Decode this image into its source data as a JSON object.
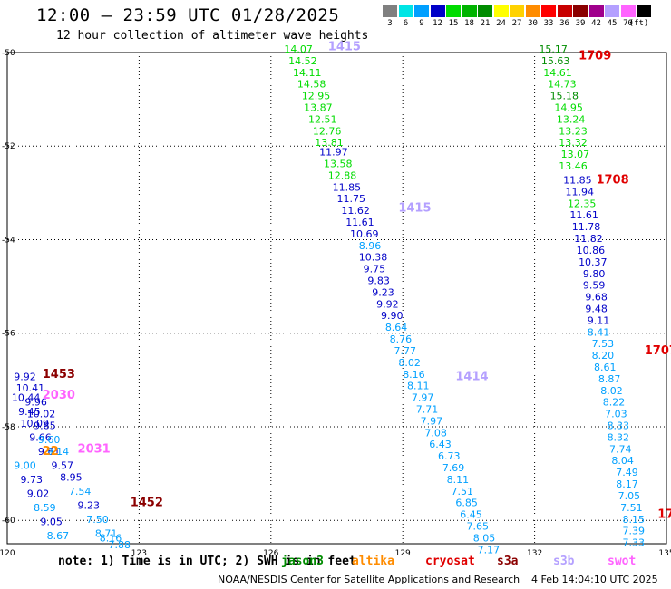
{
  "header": {
    "title": "12:00 — 23:59 UTC 01/28/2025",
    "subtitle": "12 hour collection of altimeter wave heights",
    "units": "(ft)"
  },
  "colorbar": [
    {
      "color": "#808080",
      "label": "3"
    },
    {
      "color": "#00e5e5",
      "label": "6"
    },
    {
      "color": "#00a0ff",
      "label": "9"
    },
    {
      "color": "#0000c8",
      "label": "12"
    },
    {
      "color": "#00dc00",
      "label": "15"
    },
    {
      "color": "#00b400",
      "label": "18"
    },
    {
      "color": "#008c00",
      "label": "21"
    },
    {
      "color": "#ffff00",
      "label": "24"
    },
    {
      "color": "#ffd200",
      "label": "27"
    },
    {
      "color": "#ff8c00",
      "label": "30"
    },
    {
      "color": "#ff0000",
      "label": "33"
    },
    {
      "color": "#c80000",
      "label": "36"
    },
    {
      "color": "#8b0000",
      "label": "39"
    },
    {
      "color": "#a0008c",
      "label": "42"
    },
    {
      "color": "#b4a0ff",
      "label": "45"
    },
    {
      "color": "#ff64ff",
      "label": "70"
    },
    {
      "color": "#000000",
      "label": ""
    }
  ],
  "map": {
    "lon_ticks": [
      "120",
      "123",
      "126",
      "129",
      "132",
      "135"
    ],
    "lat_ticks": [
      "-50",
      "-52",
      "-54",
      "-56",
      "-58",
      "-60"
    ],
    "track_labels": [
      {
        "text": "1415",
        "lon": 127.3,
        "lat": -49.95,
        "color": "#b4a0ff"
      },
      {
        "text": "1415",
        "lon": 128.9,
        "lat": -53.4,
        "color": "#b4a0ff"
      },
      {
        "text": "1414",
        "lon": 130.2,
        "lat": -57.0,
        "color": "#b4a0ff"
      },
      {
        "text": "1709",
        "lon": 133.0,
        "lat": -50.15,
        "color": "#e00000"
      },
      {
        "text": "1708",
        "lon": 133.4,
        "lat": -52.8,
        "color": "#e00000"
      },
      {
        "text": "1707",
        "lon": 134.5,
        "lat": -56.45,
        "color": "#e00000"
      },
      {
        "text": "17",
        "lon": 134.8,
        "lat": -59.95,
        "color": "#e00000"
      },
      {
        "text": "1453",
        "lon": 120.8,
        "lat": -56.95,
        "color": "#8b0000"
      },
      {
        "text": "1452",
        "lon": 122.8,
        "lat": -59.7,
        "color": "#8b0000"
      },
      {
        "text": "2030",
        "lon": 120.8,
        "lat": -57.4,
        "color": "#ff64ff"
      },
      {
        "text": "2031",
        "lon": 121.6,
        "lat": -58.55,
        "color": "#ff64ff"
      },
      {
        "text": "22",
        "lon": 120.8,
        "lat": -58.6,
        "color": "#ff8c00"
      }
    ],
    "observations": [
      {
        "text": "14.07",
        "lon": 126.3,
        "lat": -50.0,
        "color": "#00dc00"
      },
      {
        "text": "14.52",
        "lon": 126.4,
        "lat": -50.25,
        "color": "#00dc00"
      },
      {
        "text": "14.11",
        "lon": 126.5,
        "lat": -50.5,
        "color": "#00dc00"
      },
      {
        "text": "14.58",
        "lon": 126.6,
        "lat": -50.75,
        "color": "#00dc00"
      },
      {
        "text": "12.95",
        "lon": 126.7,
        "lat": -51.0,
        "color": "#00dc00"
      },
      {
        "text": "13.87",
        "lon": 126.75,
        "lat": -51.25,
        "color": "#00dc00"
      },
      {
        "text": "12.51",
        "lon": 126.85,
        "lat": -51.5,
        "color": "#00dc00"
      },
      {
        "text": "12.76",
        "lon": 126.95,
        "lat": -51.75,
        "color": "#00dc00"
      },
      {
        "text": "13.81",
        "lon": 127.0,
        "lat": -52.0,
        "color": "#00dc00"
      },
      {
        "text": "11.97",
        "lon": 127.1,
        "lat": -52.2,
        "color": "#0000c8"
      },
      {
        "text": "13.58",
        "lon": 127.2,
        "lat": -52.45,
        "color": "#00dc00"
      },
      {
        "text": "12.88",
        "lon": 127.3,
        "lat": -52.7,
        "color": "#00dc00"
      },
      {
        "text": "11.85",
        "lon": 127.4,
        "lat": -52.95,
        "color": "#0000c8"
      },
      {
        "text": "11.75",
        "lon": 127.5,
        "lat": -53.2,
        "color": "#0000c8"
      },
      {
        "text": "11.62",
        "lon": 127.6,
        "lat": -53.45,
        "color": "#0000c8"
      },
      {
        "text": "11.61",
        "lon": 127.7,
        "lat": -53.7,
        "color": "#0000c8"
      },
      {
        "text": "10.69",
        "lon": 127.8,
        "lat": -53.95,
        "color": "#0000c8"
      },
      {
        "text": "8.96",
        "lon": 128.0,
        "lat": -54.2,
        "color": "#00a0ff"
      },
      {
        "text": "10.38",
        "lon": 128.0,
        "lat": -54.45,
        "color": "#0000c8"
      },
      {
        "text": "9.75",
        "lon": 128.1,
        "lat": -54.7,
        "color": "#0000c8"
      },
      {
        "text": "9.83",
        "lon": 128.2,
        "lat": -54.95,
        "color": "#0000c8"
      },
      {
        "text": "9.23",
        "lon": 128.3,
        "lat": -55.2,
        "color": "#0000c8"
      },
      {
        "text": "9.92",
        "lon": 128.4,
        "lat": -55.45,
        "color": "#0000c8"
      },
      {
        "text": "9.90",
        "lon": 128.5,
        "lat": -55.7,
        "color": "#0000c8"
      },
      {
        "text": "8.64",
        "lon": 128.6,
        "lat": -55.95,
        "color": "#00a0ff"
      },
      {
        "text": "8.76",
        "lon": 128.7,
        "lat": -56.2,
        "color": "#00a0ff"
      },
      {
        "text": "7.77",
        "lon": 128.8,
        "lat": -56.45,
        "color": "#00a0ff"
      },
      {
        "text": "8.02",
        "lon": 128.9,
        "lat": -56.7,
        "color": "#00a0ff"
      },
      {
        "text": "8.16",
        "lon": 129.0,
        "lat": -56.95,
        "color": "#00a0ff"
      },
      {
        "text": "8.11",
        "lon": 129.1,
        "lat": -57.2,
        "color": "#00a0ff"
      },
      {
        "text": "7.97",
        "lon": 129.2,
        "lat": -57.45,
        "color": "#00a0ff"
      },
      {
        "text": "7.71",
        "lon": 129.3,
        "lat": -57.7,
        "color": "#00a0ff"
      },
      {
        "text": "7.97",
        "lon": 129.4,
        "lat": -57.95,
        "color": "#00a0ff"
      },
      {
        "text": "7.08",
        "lon": 129.5,
        "lat": -58.2,
        "color": "#00a0ff"
      },
      {
        "text": "6.43",
        "lon": 129.6,
        "lat": -58.45,
        "color": "#00a0ff"
      },
      {
        "text": "6.73",
        "lon": 129.8,
        "lat": -58.7,
        "color": "#00a0ff"
      },
      {
        "text": "7.69",
        "lon": 129.9,
        "lat": -58.95,
        "color": "#00a0ff"
      },
      {
        "text": "8.11",
        "lon": 130.0,
        "lat": -59.2,
        "color": "#00a0ff"
      },
      {
        "text": "7.51",
        "lon": 130.1,
        "lat": -59.45,
        "color": "#00a0ff"
      },
      {
        "text": "6.85",
        "lon": 130.2,
        "lat": -59.7,
        "color": "#00a0ff"
      },
      {
        "text": "6.45",
        "lon": 130.3,
        "lat": -59.95,
        "color": "#00a0ff"
      },
      {
        "text": "7.65",
        "lon": 130.45,
        "lat": -60.2,
        "color": "#00a0ff"
      },
      {
        "text": "8.05",
        "lon": 130.6,
        "lat": -60.45,
        "color": "#00a0ff"
      },
      {
        "text": "7.17",
        "lon": 130.7,
        "lat": -60.7,
        "color": "#00a0ff"
      },
      {
        "text": "15.17",
        "lon": 132.1,
        "lat": -50.0,
        "color": "#008c00"
      },
      {
        "text": "15.63",
        "lon": 132.15,
        "lat": -50.25,
        "color": "#008c00"
      },
      {
        "text": "14.61",
        "lon": 132.2,
        "lat": -50.5,
        "color": "#00dc00"
      },
      {
        "text": "14.73",
        "lon": 132.3,
        "lat": -50.75,
        "color": "#00dc00"
      },
      {
        "text": "15.18",
        "lon": 132.35,
        "lat": -51.0,
        "color": "#008c00"
      },
      {
        "text": "14.95",
        "lon": 132.45,
        "lat": -51.25,
        "color": "#00dc00"
      },
      {
        "text": "13.24",
        "lon": 132.5,
        "lat": -51.5,
        "color": "#00dc00"
      },
      {
        "text": "13.23",
        "lon": 132.55,
        "lat": -51.75,
        "color": "#00dc00"
      },
      {
        "text": "13.32",
        "lon": 132.55,
        "lat": -52.0,
        "color": "#00dc00"
      },
      {
        "text": "13.07",
        "lon": 132.6,
        "lat": -52.25,
        "color": "#00dc00"
      },
      {
        "text": "13.46",
        "lon": 132.55,
        "lat": -52.5,
        "color": "#00dc00"
      },
      {
        "text": "11.85",
        "lon": 132.65,
        "lat": -52.8,
        "color": "#0000c8"
      },
      {
        "text": "11.94",
        "lon": 132.7,
        "lat": -53.05,
        "color": "#0000c8"
      },
      {
        "text": "12.35",
        "lon": 132.75,
        "lat": -53.3,
        "color": "#00dc00"
      },
      {
        "text": "11.61",
        "lon": 132.8,
        "lat": -53.55,
        "color": "#0000c8"
      },
      {
        "text": "11.78",
        "lon": 132.85,
        "lat": -53.8,
        "color": "#0000c8"
      },
      {
        "text": "11.82",
        "lon": 132.9,
        "lat": -54.05,
        "color": "#0000c8"
      },
      {
        "text": "10.86",
        "lon": 132.95,
        "lat": -54.3,
        "color": "#0000c8"
      },
      {
        "text": "10.37",
        "lon": 133.0,
        "lat": -54.55,
        "color": "#0000c8"
      },
      {
        "text": "9.80",
        "lon": 133.1,
        "lat": -54.8,
        "color": "#0000c8"
      },
      {
        "text": "9.59",
        "lon": 133.1,
        "lat": -55.05,
        "color": "#0000c8"
      },
      {
        "text": "9.68",
        "lon": 133.15,
        "lat": -55.3,
        "color": "#0000c8"
      },
      {
        "text": "9.48",
        "lon": 133.15,
        "lat": -55.55,
        "color": "#0000c8"
      },
      {
        "text": "9.11",
        "lon": 133.2,
        "lat": -55.8,
        "color": "#0000c8"
      },
      {
        "text": "8.41",
        "lon": 133.2,
        "lat": -56.05,
        "color": "#00a0ff"
      },
      {
        "text": "7.53",
        "lon": 133.3,
        "lat": -56.3,
        "color": "#00a0ff"
      },
      {
        "text": "8.20",
        "lon": 133.3,
        "lat": -56.55,
        "color": "#00a0ff"
      },
      {
        "text": "8.61",
        "lon": 133.35,
        "lat": -56.8,
        "color": "#00a0ff"
      },
      {
        "text": "8.87",
        "lon": 133.45,
        "lat": -57.05,
        "color": "#00a0ff"
      },
      {
        "text": "8.02",
        "lon": 133.5,
        "lat": -57.3,
        "color": "#00a0ff"
      },
      {
        "text": "8.22",
        "lon": 133.55,
        "lat": -57.55,
        "color": "#00a0ff"
      },
      {
        "text": "7.03",
        "lon": 133.6,
        "lat": -57.8,
        "color": "#00a0ff"
      },
      {
        "text": "8.33",
        "lon": 133.65,
        "lat": -58.05,
        "color": "#00a0ff"
      },
      {
        "text": "8.32",
        "lon": 133.65,
        "lat": -58.3,
        "color": "#00a0ff"
      },
      {
        "text": "7.74",
        "lon": 133.7,
        "lat": -58.55,
        "color": "#00a0ff"
      },
      {
        "text": "8.04",
        "lon": 133.75,
        "lat": -58.8,
        "color": "#00a0ff"
      },
      {
        "text": "7.49",
        "lon": 133.85,
        "lat": -59.05,
        "color": "#00a0ff"
      },
      {
        "text": "8.17",
        "lon": 133.85,
        "lat": -59.3,
        "color": "#00a0ff"
      },
      {
        "text": "7.05",
        "lon": 133.9,
        "lat": -59.55,
        "color": "#00a0ff"
      },
      {
        "text": "7.51",
        "lon": 133.95,
        "lat": -59.8,
        "color": "#00a0ff"
      },
      {
        "text": "8.15",
        "lon": 134.0,
        "lat": -60.05,
        "color": "#00a0ff"
      },
      {
        "text": "7.39",
        "lon": 134.0,
        "lat": -60.3,
        "color": "#00a0ff"
      },
      {
        "text": "7.33",
        "lon": 134.0,
        "lat": -60.55,
        "color": "#00a0ff"
      },
      {
        "text": "9.92",
        "lon": 120.15,
        "lat": -57.0,
        "color": "#0000c8"
      },
      {
        "text": "10.41",
        "lon": 120.2,
        "lat": -57.25,
        "color": "#0000c8"
      },
      {
        "text": "10.44",
        "lon": 120.1,
        "lat": -57.45,
        "color": "#0000c8"
      },
      {
        "text": "9.96",
        "lon": 120.4,
        "lat": -57.55,
        "color": "#0000c8"
      },
      {
        "text": "9.45",
        "lon": 120.25,
        "lat": -57.75,
        "color": "#0000c8"
      },
      {
        "text": "10.02",
        "lon": 120.45,
        "lat": -57.8,
        "color": "#0000c8"
      },
      {
        "text": "10.09",
        "lon": 120.3,
        "lat": -58.0,
        "color": "#0000c8"
      },
      {
        "text": "9.85",
        "lon": 120.6,
        "lat": -58.05,
        "color": "#0000c8"
      },
      {
        "text": "9.66",
        "lon": 120.5,
        "lat": -58.3,
        "color": "#0000c8"
      },
      {
        "text": "9.60",
        "lon": 120.7,
        "lat": -58.35,
        "color": "#00a0ff"
      },
      {
        "text": "9.61",
        "lon": 120.7,
        "lat": -58.6,
        "color": "#0000c8"
      },
      {
        "text": "9.14",
        "lon": 120.9,
        "lat": -58.6,
        "color": "#00a0ff"
      },
      {
        "text": "9.00",
        "lon": 120.15,
        "lat": -58.9,
        "color": "#00a0ff"
      },
      {
        "text": "9.57",
        "lon": 121.0,
        "lat": -58.9,
        "color": "#0000c8"
      },
      {
        "text": "9.73",
        "lon": 120.3,
        "lat": -59.2,
        "color": "#0000c8"
      },
      {
        "text": "8.95",
        "lon": 121.2,
        "lat": -59.15,
        "color": "#0000c8"
      },
      {
        "text": "9.02",
        "lon": 120.45,
        "lat": -59.5,
        "color": "#0000c8"
      },
      {
        "text": "7.54",
        "lon": 121.4,
        "lat": -59.45,
        "color": "#00a0ff"
      },
      {
        "text": "8.59",
        "lon": 120.6,
        "lat": -59.8,
        "color": "#00a0ff"
      },
      {
        "text": "9.23",
        "lon": 121.6,
        "lat": -59.75,
        "color": "#0000c8"
      },
      {
        "text": "9.05",
        "lon": 120.75,
        "lat": -60.1,
        "color": "#0000c8"
      },
      {
        "text": "7.50",
        "lon": 121.8,
        "lat": -60.05,
        "color": "#00a0ff"
      },
      {
        "text": "8.67",
        "lon": 120.9,
        "lat": -60.4,
        "color": "#00a0ff"
      },
      {
        "text": "8.71",
        "lon": 122.0,
        "lat": -60.35,
        "color": "#00a0ff"
      },
      {
        "text": "8.16",
        "lon": 122.1,
        "lat": -60.45,
        "color": "#00a0ff"
      },
      {
        "text": "7.88",
        "lon": 122.3,
        "lat": -60.6,
        "color": "#00a0ff"
      }
    ]
  },
  "satellites": [
    {
      "name": "jason3",
      "color": "#008c00"
    },
    {
      "name": "altika",
      "color": "#ff8c00"
    },
    {
      "name": "cryosat",
      "color": "#e00000"
    },
    {
      "name": "s3a",
      "color": "#8b0000"
    },
    {
      "name": "s3b",
      "color": "#b4a0ff"
    },
    {
      "name": "swot",
      "color": "#ff64ff"
    }
  ],
  "footer": {
    "note": "note: 1) Time is in UTC; 2) SWH is in feet",
    "credit": "NOAA/NESDIS Center for Satellite Applications and Research",
    "timestamp": "4 Feb 14:04:10 UTC 2025"
  }
}
